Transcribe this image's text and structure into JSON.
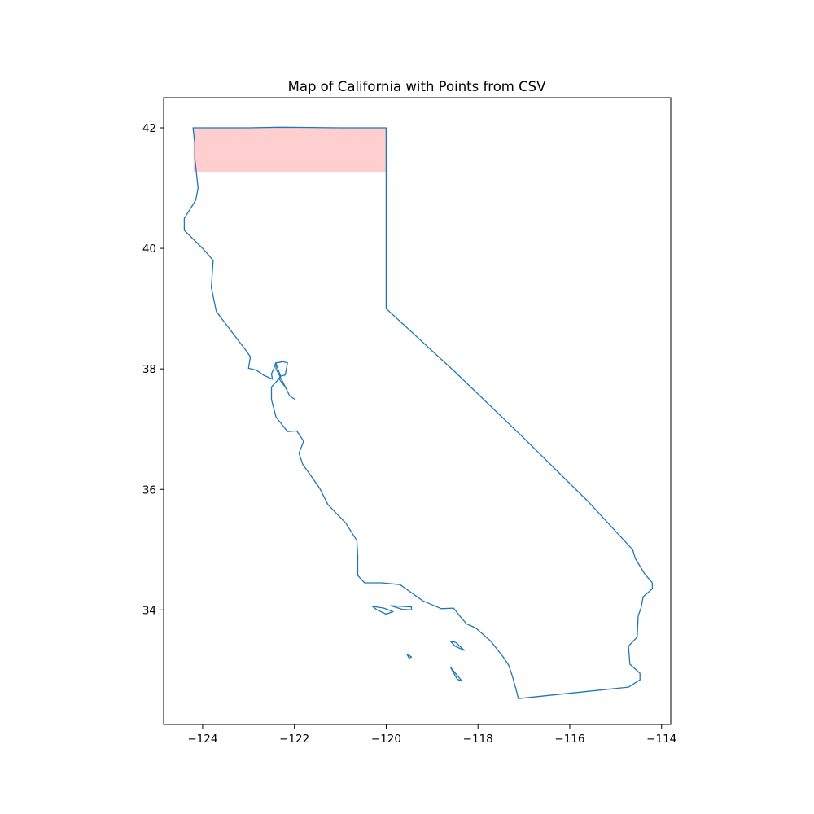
{
  "chart_data": {
    "type": "map",
    "title": "Map of California with Points from CSV",
    "xlabel": "",
    "ylabel": "",
    "xlim": [
      -124.85,
      -113.8
    ],
    "ylim": [
      32.1,
      42.5
    ],
    "x_ticks": [
      -124,
      -122,
      -120,
      -118,
      -116,
      -114
    ],
    "x_tick_labels": [
      "−124",
      "−122",
      "−120",
      "−118",
      "−116",
      "−114"
    ],
    "y_ticks": [
      34,
      36,
      38,
      40,
      42
    ],
    "y_tick_labels": [
      "34",
      "36",
      "38",
      "40",
      "42"
    ],
    "grid": false,
    "outline_color": "#1f77b4",
    "highlight_color": "#ffcccc",
    "highlight_region": {
      "lon_range": [
        -124.2,
        -120.0
      ],
      "lat_range": [
        41.27,
        42.0
      ]
    },
    "mainland": [
      [
        -124.21,
        42.0
      ],
      [
        -123.0,
        42.0
      ],
      [
        -122.3,
        42.01
      ],
      [
        -121.0,
        42.0
      ],
      [
        -120.0,
        42.0
      ],
      [
        -120.0,
        41.0
      ],
      [
        -120.0,
        40.0
      ],
      [
        -120.0,
        39.0
      ],
      [
        -118.5,
        37.95
      ],
      [
        -117.0,
        36.85
      ],
      [
        -115.6,
        35.8
      ],
      [
        -114.63,
        35.0
      ],
      [
        -114.57,
        34.85
      ],
      [
        -114.37,
        34.6
      ],
      [
        -114.2,
        34.45
      ],
      [
        -114.2,
        34.35
      ],
      [
        -114.4,
        34.22
      ],
      [
        -114.45,
        34.03
      ],
      [
        -114.51,
        33.9
      ],
      [
        -114.53,
        33.55
      ],
      [
        -114.72,
        33.4
      ],
      [
        -114.69,
        33.1
      ],
      [
        -114.47,
        32.95
      ],
      [
        -114.47,
        32.84
      ],
      [
        -114.72,
        32.72
      ],
      [
        -117.12,
        32.53
      ],
      [
        -117.17,
        32.68
      ],
      [
        -117.25,
        32.9
      ],
      [
        -117.33,
        33.08
      ],
      [
        -117.45,
        33.22
      ],
      [
        -117.72,
        33.48
      ],
      [
        -118.05,
        33.7
      ],
      [
        -118.25,
        33.77
      ],
      [
        -118.4,
        33.9
      ],
      [
        -118.53,
        34.03
      ],
      [
        -118.8,
        34.02
      ],
      [
        -119.2,
        34.15
      ],
      [
        -119.7,
        34.42
      ],
      [
        -120.1,
        34.45
      ],
      [
        -120.47,
        34.45
      ],
      [
        -120.62,
        34.57
      ],
      [
        -120.62,
        34.9
      ],
      [
        -120.64,
        35.15
      ],
      [
        -120.88,
        35.44
      ],
      [
        -121.27,
        35.75
      ],
      [
        -121.45,
        36.02
      ],
      [
        -121.82,
        36.42
      ],
      [
        -121.9,
        36.6
      ],
      [
        -121.8,
        36.8
      ],
      [
        -121.95,
        36.97
      ],
      [
        -122.15,
        36.96
      ],
      [
        -122.4,
        37.2
      ],
      [
        -122.5,
        37.49
      ],
      [
        -122.5,
        37.7
      ],
      [
        -122.38,
        37.8
      ],
      [
        -122.3,
        37.88
      ],
      [
        -122.41,
        38.1
      ],
      [
        -122.44,
        38.02
      ],
      [
        -122.5,
        37.92
      ],
      [
        -122.48,
        37.83
      ],
      [
        -122.68,
        37.9
      ],
      [
        -122.83,
        37.98
      ],
      [
        -123.0,
        38.01
      ],
      [
        -122.96,
        38.2
      ],
      [
        -123.05,
        38.3
      ],
      [
        -123.25,
        38.5
      ],
      [
        -123.5,
        38.75
      ],
      [
        -123.7,
        38.95
      ],
      [
        -123.81,
        39.35
      ],
      [
        -123.77,
        39.8
      ],
      [
        -124.0,
        40.0
      ],
      [
        -124.4,
        40.3
      ],
      [
        -124.4,
        40.5
      ],
      [
        -124.15,
        40.8
      ],
      [
        -124.1,
        41.0
      ],
      [
        -124.17,
        41.5
      ],
      [
        -124.17,
        41.75
      ],
      [
        -124.21,
        42.0
      ]
    ],
    "bay": [
      [
        -122.38,
        37.8
      ],
      [
        -122.3,
        37.88
      ],
      [
        -122.2,
        37.9
      ],
      [
        -122.15,
        38.1
      ],
      [
        -122.25,
        38.12
      ],
      [
        -122.4,
        38.1
      ],
      [
        -122.4,
        38.0
      ],
      [
        -122.25,
        37.78
      ],
      [
        -122.1,
        37.55
      ],
      [
        -122.0,
        37.5
      ],
      [
        -122.1,
        37.55
      ],
      [
        -122.2,
        37.7
      ],
      [
        -122.35,
        37.85
      ]
    ],
    "islands": [
      [
        [
          -120.3,
          34.06
        ],
        [
          -120.05,
          34.03
        ],
        [
          -119.85,
          33.97
        ],
        [
          -120.0,
          33.93
        ],
        [
          -120.2,
          34.0
        ],
        [
          -120.3,
          34.06
        ]
      ],
      [
        [
          -119.9,
          34.07
        ],
        [
          -119.45,
          34.05
        ],
        [
          -119.45,
          34.0
        ],
        [
          -119.65,
          34.01
        ],
        [
          -119.9,
          34.07
        ]
      ],
      [
        [
          -119.55,
          33.27
        ],
        [
          -119.45,
          33.22
        ],
        [
          -119.5,
          33.2
        ],
        [
          -119.55,
          33.27
        ]
      ],
      [
        [
          -118.6,
          33.48
        ],
        [
          -118.48,
          33.46
        ],
        [
          -118.3,
          33.33
        ],
        [
          -118.5,
          33.4
        ],
        [
          -118.6,
          33.48
        ]
      ],
      [
        [
          -118.6,
          33.05
        ],
        [
          -118.35,
          32.82
        ],
        [
          -118.45,
          32.85
        ],
        [
          -118.6,
          33.05
        ]
      ]
    ]
  }
}
